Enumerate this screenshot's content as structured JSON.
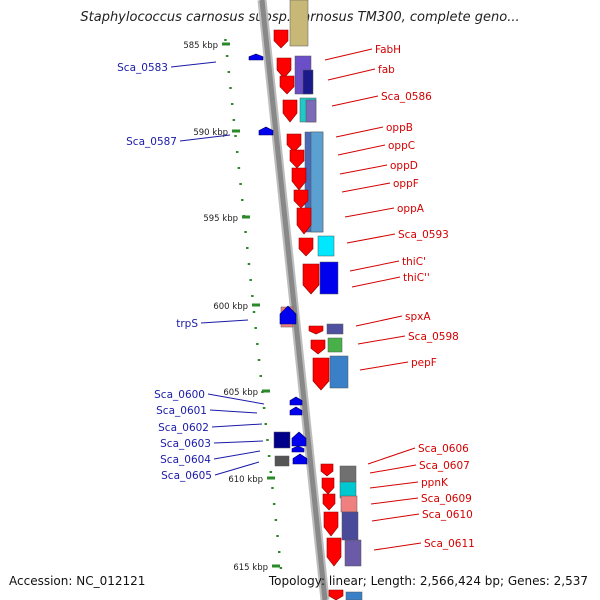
{
  "title": "Staphylococcus carnosus subsp. carnosus TM300, complete geno...",
  "footer": {
    "accession": "Accession: NC_012121",
    "stats": "Topology: linear; Length: 2,566,424 bp; Genes: 2,537"
  },
  "scale_labels": [
    "585 kbp",
    "590 kbp",
    "595 kbp",
    "600 kbp",
    "605 kbp",
    "610 kbp",
    "615 kbp"
  ],
  "colors": {
    "forward_label": "#d40000",
    "reverse_label": "#1a1aa8",
    "forward_gene": "#ff0000",
    "reverse_gene": "#0000ee",
    "tick": "#2a8a2a",
    "backbone": "#888888"
  },
  "right_labels": [
    "FabH",
    "fab",
    "Sca_0586",
    "oppB",
    "oppC",
    "oppD",
    "oppF",
    "oppA",
    "Sca_0593",
    "thiC'",
    "thiC''",
    "spxA",
    "Sca_0598",
    "pepF",
    "Sca_0606",
    "Sca_0607",
    "ppnK",
    "Sca_0609",
    "Sca_0610",
    "Sca_0611"
  ],
  "left_labels": [
    "Sca_0583",
    "Sca_0587",
    "trpS",
    "Sca_0600",
    "Sca_0601",
    "Sca_0602",
    "Sca_0603",
    "Sca_0604",
    "Sca_0605"
  ]
}
